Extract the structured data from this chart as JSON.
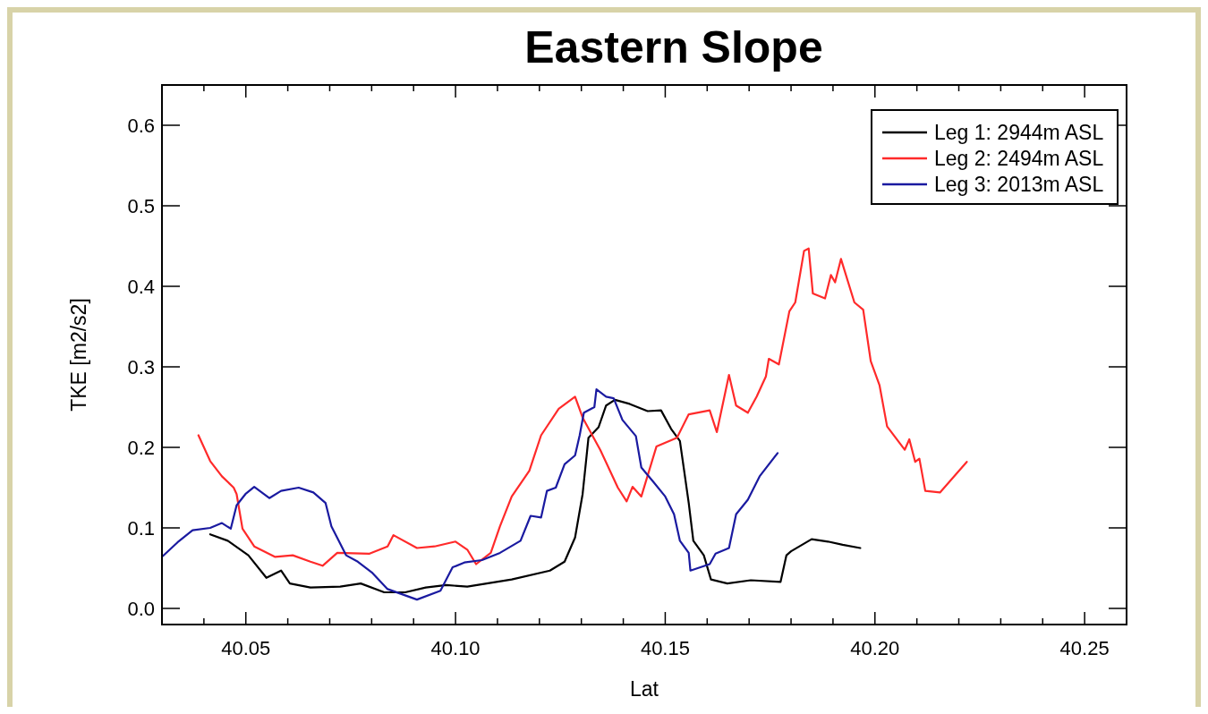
{
  "chart_data": {
    "type": "line",
    "title": "Eastern Slope",
    "xlabel": "Lat",
    "ylabel": "TKE [m2/s2]",
    "xlim": [
      40.03,
      40.26
    ],
    "ylim": [
      -0.02,
      0.65
    ],
    "xticks": [
      {
        "value": 40.04,
        "label": null
      },
      {
        "value": 40.05,
        "label": "40.05"
      },
      {
        "value": 40.06,
        "label": null
      },
      {
        "value": 40.07,
        "label": null
      },
      {
        "value": 40.08,
        "label": null
      },
      {
        "value": 40.09,
        "label": null
      },
      {
        "value": 40.1,
        "label": "40.10"
      },
      {
        "value": 40.11,
        "label": null
      },
      {
        "value": 40.12,
        "label": null
      },
      {
        "value": 40.13,
        "label": null
      },
      {
        "value": 40.14,
        "label": null
      },
      {
        "value": 40.15,
        "label": "40.15"
      },
      {
        "value": 40.16,
        "label": null
      },
      {
        "value": 40.17,
        "label": null
      },
      {
        "value": 40.18,
        "label": null
      },
      {
        "value": 40.19,
        "label": null
      },
      {
        "value": 40.2,
        "label": "40.20"
      },
      {
        "value": 40.21,
        "label": null
      },
      {
        "value": 40.22,
        "label": null
      },
      {
        "value": 40.23,
        "label": null
      },
      {
        "value": 40.24,
        "label": null
      },
      {
        "value": 40.25,
        "label": "40.25"
      }
    ],
    "yticks": [
      {
        "value": 0,
        "label": "0.0"
      },
      {
        "value": 0.1,
        "label": "0.1"
      },
      {
        "value": 0.2,
        "label": "0.2"
      },
      {
        "value": 0.3,
        "label": "0.3"
      },
      {
        "value": 0.4,
        "label": "0.4"
      },
      {
        "value": 0.5,
        "label": "0.5"
      },
      {
        "value": 0.6,
        "label": "0.6"
      }
    ],
    "grid": false,
    "legend": "top right",
    "marker": "none",
    "line_style": "solid",
    "series": [
      {
        "name": "Leg 1: 2944m ASL",
        "color": "#000000",
        "x": [
          40.0415,
          40.0457,
          40.0506,
          40.0549,
          40.0584,
          40.0605,
          40.0654,
          40.0725,
          40.0774,
          40.083,
          40.088,
          40.0929,
          40.0978,
          40.1028,
          40.1134,
          40.1225,
          40.126,
          40.1285,
          40.1303,
          40.1317,
          40.1341,
          40.1359,
          40.138,
          40.1415,
          40.1458,
          40.149,
          40.1514,
          40.1535,
          40.1556,
          40.1567,
          40.1592,
          40.1609,
          40.1648,
          40.1704,
          40.1775,
          40.1789,
          40.18,
          40.1849,
          40.1888,
          40.1923,
          40.1965
        ],
        "values": [
          0.092,
          0.084,
          0.066,
          0.038,
          0.047,
          0.031,
          0.026,
          0.027,
          0.031,
          0.02,
          0.02,
          0.026,
          0.029,
          0.027,
          0.036,
          0.047,
          0.058,
          0.088,
          0.142,
          0.212,
          0.225,
          0.252,
          0.259,
          0.254,
          0.245,
          0.246,
          0.223,
          0.208,
          0.131,
          0.084,
          0.066,
          0.036,
          0.031,
          0.035,
          0.033,
          0.066,
          0.071,
          0.086,
          0.083,
          0.079,
          0.075
        ]
      },
      {
        "name": "Leg 2: 2494m ASL",
        "color": "#ff2a2a",
        "x": [
          40.0387,
          40.0415,
          40.0443,
          40.0471,
          40.0478,
          40.0492,
          40.052,
          40.057,
          40.0612,
          40.0654,
          40.0683,
          40.0718,
          40.0795,
          40.0838,
          40.0852,
          40.0908,
          40.095,
          40.1,
          40.1028,
          40.1049,
          40.1084,
          40.1106,
          40.1134,
          40.1176,
          40.1204,
          40.1246,
          40.1285,
          40.1303,
          40.1345,
          40.1387,
          40.1408,
          40.1422,
          40.1443,
          40.1479,
          40.1528,
          40.1556,
          40.1606,
          40.1623,
          40.1652,
          40.1669,
          40.1697,
          40.1718,
          40.174,
          40.1747,
          40.1771,
          40.1796,
          40.181,
          40.1831,
          40.1842,
          40.1852,
          40.1881,
          40.1895,
          40.1905,
          40.1919,
          40.1951,
          40.1972,
          40.199,
          40.2011,
          40.2029,
          40.2071,
          40.2082,
          40.2096,
          40.2106,
          40.212,
          40.2155,
          40.2219
        ],
        "values": [
          0.215,
          0.183,
          0.164,
          0.15,
          0.142,
          0.099,
          0.077,
          0.064,
          0.066,
          0.058,
          0.053,
          0.069,
          0.068,
          0.077,
          0.091,
          0.075,
          0.077,
          0.083,
          0.073,
          0.055,
          0.069,
          0.102,
          0.139,
          0.171,
          0.215,
          0.248,
          0.263,
          0.237,
          0.197,
          0.15,
          0.133,
          0.151,
          0.139,
          0.201,
          0.212,
          0.241,
          0.246,
          0.219,
          0.29,
          0.252,
          0.243,
          0.263,
          0.288,
          0.31,
          0.303,
          0.369,
          0.38,
          0.444,
          0.447,
          0.391,
          0.385,
          0.414,
          0.405,
          0.434,
          0.38,
          0.371,
          0.307,
          0.277,
          0.226,
          0.197,
          0.21,
          0.182,
          0.186,
          0.146,
          0.144,
          0.182
        ]
      },
      {
        "name": "Leg 3: 2013m ASL",
        "color": "#1a1aa0",
        "x": [
          40.0302,
          40.0337,
          40.0373,
          40.0415,
          40.0443,
          40.0464,
          40.0478,
          40.0499,
          40.052,
          40.0556,
          40.0584,
          40.0626,
          40.0661,
          40.069,
          40.0704,
          40.0739,
          40.0767,
          40.0802,
          40.0838,
          40.0908,
          40.0964,
          40.0993,
          40.1021,
          40.1063,
          40.1106,
          40.1155,
          40.1179,
          40.1204,
          40.1218,
          40.1239,
          40.126,
          40.1285,
          40.1296,
          40.1306,
          40.1331,
          40.1336,
          40.1359,
          40.1377,
          40.1398,
          40.143,
          40.1443,
          40.1472,
          40.15,
          40.1521,
          40.1535,
          40.1556,
          40.156,
          40.1606,
          40.162,
          40.1652,
          40.1669,
          40.1697,
          40.1725,
          40.1768
        ],
        "values": [
          0.065,
          0.082,
          0.097,
          0.1,
          0.106,
          0.099,
          0.128,
          0.142,
          0.151,
          0.137,
          0.146,
          0.15,
          0.144,
          0.131,
          0.102,
          0.066,
          0.058,
          0.044,
          0.024,
          0.011,
          0.022,
          0.051,
          0.057,
          0.06,
          0.069,
          0.084,
          0.115,
          0.113,
          0.146,
          0.15,
          0.179,
          0.19,
          0.215,
          0.243,
          0.25,
          0.272,
          0.263,
          0.261,
          0.234,
          0.214,
          0.175,
          0.157,
          0.139,
          0.117,
          0.084,
          0.069,
          0.047,
          0.055,
          0.068,
          0.075,
          0.117,
          0.135,
          0.164,
          0.193
        ]
      }
    ]
  }
}
